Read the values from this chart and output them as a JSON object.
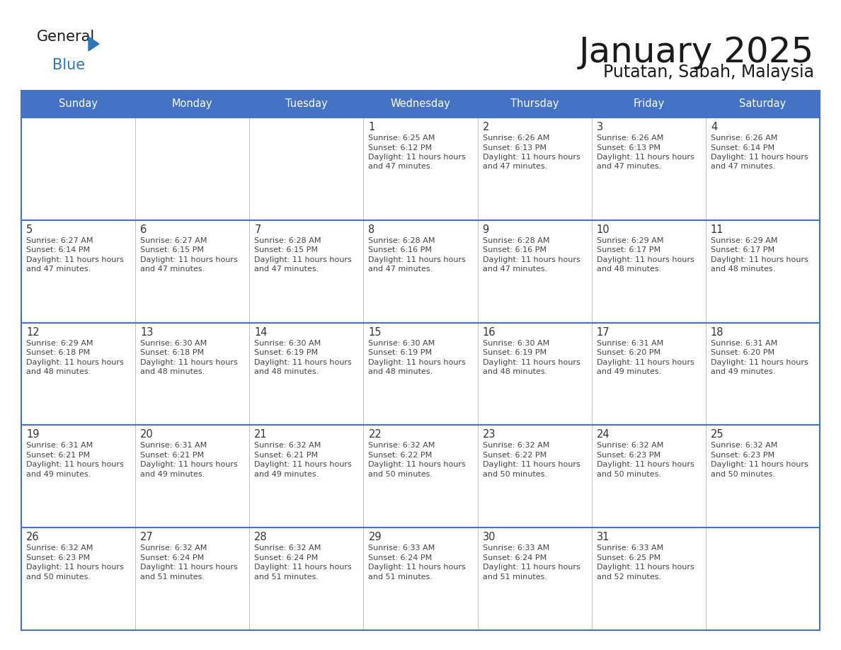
{
  "title": "January 2025",
  "subtitle": "Putatan, Sabah, Malaysia",
  "header_bg_color": "#4472C4",
  "header_text_color": "#FFFFFF",
  "day_headers": [
    "Sunday",
    "Monday",
    "Tuesday",
    "Wednesday",
    "Thursday",
    "Friday",
    "Saturday"
  ],
  "title_color": "#1a1a1a",
  "subtitle_color": "#1a1a1a",
  "day_number_color": "#333333",
  "cell_text_color": "#444444",
  "line_color": "#4472C4",
  "row_sep_color": "#4472C4",
  "col_sep_color": "#cccccc",
  "calendar_data": [
    [
      {
        "day": null,
        "sunrise": null,
        "sunset": null,
        "daylight": null
      },
      {
        "day": null,
        "sunrise": null,
        "sunset": null,
        "daylight": null
      },
      {
        "day": null,
        "sunrise": null,
        "sunset": null,
        "daylight": null
      },
      {
        "day": 1,
        "sunrise": "6:25 AM",
        "sunset": "6:12 PM",
        "daylight": "11 hours and 47 minutes."
      },
      {
        "day": 2,
        "sunrise": "6:26 AM",
        "sunset": "6:13 PM",
        "daylight": "11 hours and 47 minutes."
      },
      {
        "day": 3,
        "sunrise": "6:26 AM",
        "sunset": "6:13 PM",
        "daylight": "11 hours and 47 minutes."
      },
      {
        "day": 4,
        "sunrise": "6:26 AM",
        "sunset": "6:14 PM",
        "daylight": "11 hours and 47 minutes."
      }
    ],
    [
      {
        "day": 5,
        "sunrise": "6:27 AM",
        "sunset": "6:14 PM",
        "daylight": "11 hours and 47 minutes."
      },
      {
        "day": 6,
        "sunrise": "6:27 AM",
        "sunset": "6:15 PM",
        "daylight": "11 hours and 47 minutes."
      },
      {
        "day": 7,
        "sunrise": "6:28 AM",
        "sunset": "6:15 PM",
        "daylight": "11 hours and 47 minutes."
      },
      {
        "day": 8,
        "sunrise": "6:28 AM",
        "sunset": "6:16 PM",
        "daylight": "11 hours and 47 minutes."
      },
      {
        "day": 9,
        "sunrise": "6:28 AM",
        "sunset": "6:16 PM",
        "daylight": "11 hours and 47 minutes."
      },
      {
        "day": 10,
        "sunrise": "6:29 AM",
        "sunset": "6:17 PM",
        "daylight": "11 hours and 48 minutes."
      },
      {
        "day": 11,
        "sunrise": "6:29 AM",
        "sunset": "6:17 PM",
        "daylight": "11 hours and 48 minutes."
      }
    ],
    [
      {
        "day": 12,
        "sunrise": "6:29 AM",
        "sunset": "6:18 PM",
        "daylight": "11 hours and 48 minutes."
      },
      {
        "day": 13,
        "sunrise": "6:30 AM",
        "sunset": "6:18 PM",
        "daylight": "11 hours and 48 minutes."
      },
      {
        "day": 14,
        "sunrise": "6:30 AM",
        "sunset": "6:19 PM",
        "daylight": "11 hours and 48 minutes."
      },
      {
        "day": 15,
        "sunrise": "6:30 AM",
        "sunset": "6:19 PM",
        "daylight": "11 hours and 48 minutes."
      },
      {
        "day": 16,
        "sunrise": "6:30 AM",
        "sunset": "6:19 PM",
        "daylight": "11 hours and 48 minutes."
      },
      {
        "day": 17,
        "sunrise": "6:31 AM",
        "sunset": "6:20 PM",
        "daylight": "11 hours and 49 minutes."
      },
      {
        "day": 18,
        "sunrise": "6:31 AM",
        "sunset": "6:20 PM",
        "daylight": "11 hours and 49 minutes."
      }
    ],
    [
      {
        "day": 19,
        "sunrise": "6:31 AM",
        "sunset": "6:21 PM",
        "daylight": "11 hours and 49 minutes."
      },
      {
        "day": 20,
        "sunrise": "6:31 AM",
        "sunset": "6:21 PM",
        "daylight": "11 hours and 49 minutes."
      },
      {
        "day": 21,
        "sunrise": "6:32 AM",
        "sunset": "6:21 PM",
        "daylight": "11 hours and 49 minutes."
      },
      {
        "day": 22,
        "sunrise": "6:32 AM",
        "sunset": "6:22 PM",
        "daylight": "11 hours and 50 minutes."
      },
      {
        "day": 23,
        "sunrise": "6:32 AM",
        "sunset": "6:22 PM",
        "daylight": "11 hours and 50 minutes."
      },
      {
        "day": 24,
        "sunrise": "6:32 AM",
        "sunset": "6:23 PM",
        "daylight": "11 hours and 50 minutes."
      },
      {
        "day": 25,
        "sunrise": "6:32 AM",
        "sunset": "6:23 PM",
        "daylight": "11 hours and 50 minutes."
      }
    ],
    [
      {
        "day": 26,
        "sunrise": "6:32 AM",
        "sunset": "6:23 PM",
        "daylight": "11 hours and 50 minutes."
      },
      {
        "day": 27,
        "sunrise": "6:32 AM",
        "sunset": "6:24 PM",
        "daylight": "11 hours and 51 minutes."
      },
      {
        "day": 28,
        "sunrise": "6:32 AM",
        "sunset": "6:24 PM",
        "daylight": "11 hours and 51 minutes."
      },
      {
        "day": 29,
        "sunrise": "6:33 AM",
        "sunset": "6:24 PM",
        "daylight": "11 hours and 51 minutes."
      },
      {
        "day": 30,
        "sunrise": "6:33 AM",
        "sunset": "6:24 PM",
        "daylight": "11 hours and 51 minutes."
      },
      {
        "day": 31,
        "sunrise": "6:33 AM",
        "sunset": "6:25 PM",
        "daylight": "11 hours and 52 minutes."
      },
      {
        "day": null,
        "sunrise": null,
        "sunset": null,
        "daylight": null
      }
    ]
  ]
}
